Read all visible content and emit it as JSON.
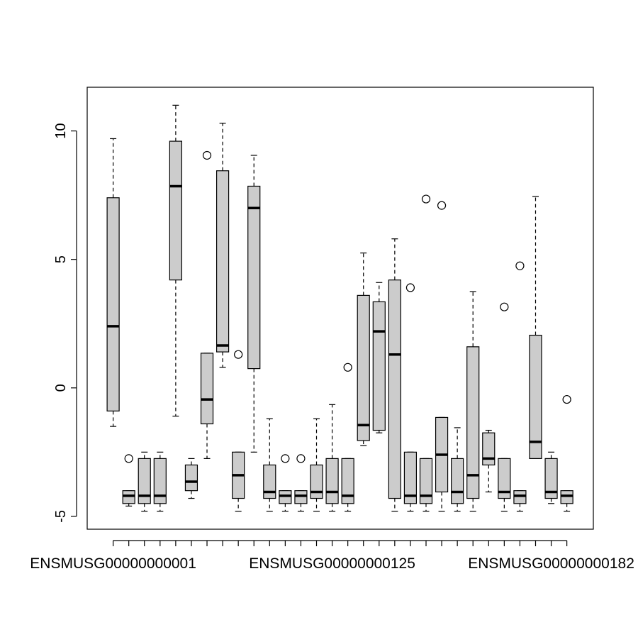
{
  "chart_data": {
    "type": "boxplot",
    "title": "",
    "xlabel": "",
    "ylabel": "",
    "ylim": [
      -5.5,
      11.7
    ],
    "y_ticks": [
      -5,
      0,
      5,
      10
    ],
    "y_tick_labels": [
      "-5",
      "0",
      "5",
      "10"
    ],
    "x_tick_labels": [
      {
        "category": 1,
        "text": "ENSMUSG00000000001"
      },
      {
        "category": 15,
        "text": "ENSMUSG00000000125"
      },
      {
        "category": 29,
        "text": "ENSMUSG00000000182"
      }
    ],
    "grid": false,
    "box_fill": "#cccccc",
    "line_color": "#000000",
    "boxes": [
      {
        "category": 1,
        "whisker_low": -1.5,
        "q1": -0.9,
        "median": 2.4,
        "q3": 7.4,
        "whisker_high": 9.7,
        "outliers": []
      },
      {
        "category": 2,
        "whisker_low": -4.6,
        "q1": -4.5,
        "median": -4.2,
        "q3": -4.0,
        "whisker_high": -4.0,
        "outliers": [
          -2.75
        ]
      },
      {
        "category": 3,
        "whisker_low": -4.8,
        "q1": -4.5,
        "median": -4.2,
        "q3": -2.75,
        "whisker_high": -2.5,
        "outliers": []
      },
      {
        "category": 4,
        "whisker_low": -4.8,
        "q1": -4.5,
        "median": -4.2,
        "q3": -2.75,
        "whisker_high": -2.5,
        "outliers": []
      },
      {
        "category": 5,
        "whisker_low": -1.1,
        "q1": 4.2,
        "median": 7.85,
        "q3": 9.6,
        "whisker_high": 11.0,
        "outliers": []
      },
      {
        "category": 6,
        "whisker_low": -4.3,
        "q1": -4.0,
        "median": -3.65,
        "q3": -3.0,
        "whisker_high": -2.75,
        "outliers": []
      },
      {
        "category": 7,
        "whisker_low": -2.75,
        "q1": -1.4,
        "median": -0.45,
        "q3": 1.35,
        "whisker_high": 1.35,
        "outliers": [
          9.05
        ]
      },
      {
        "category": 8,
        "whisker_low": 0.8,
        "q1": 1.4,
        "median": 1.65,
        "q3": 8.45,
        "whisker_high": 10.3,
        "outliers": []
      },
      {
        "category": 9,
        "whisker_low": -4.8,
        "q1": -4.3,
        "median": -3.4,
        "q3": -2.5,
        "whisker_high": -2.5,
        "outliers": [
          1.3
        ]
      },
      {
        "category": 10,
        "whisker_low": -2.5,
        "q1": 0.75,
        "median": 7.0,
        "q3": 7.85,
        "whisker_high": 9.05,
        "outliers": []
      },
      {
        "category": 11,
        "whisker_low": -4.8,
        "q1": -4.3,
        "median": -4.05,
        "q3": -3.0,
        "whisker_high": -1.2,
        "outliers": []
      },
      {
        "category": 12,
        "whisker_low": -4.8,
        "q1": -4.5,
        "median": -4.2,
        "q3": -4.0,
        "whisker_high": -4.0,
        "outliers": [
          -2.75
        ]
      },
      {
        "category": 13,
        "whisker_low": -4.8,
        "q1": -4.5,
        "median": -4.2,
        "q3": -4.0,
        "whisker_high": -4.0,
        "outliers": [
          -2.75
        ]
      },
      {
        "category": 14,
        "whisker_low": -4.8,
        "q1": -4.3,
        "median": -4.05,
        "q3": -3.0,
        "whisker_high": -1.2,
        "outliers": []
      },
      {
        "category": 15,
        "whisker_low": -4.8,
        "q1": -4.5,
        "median": -4.05,
        "q3": -2.75,
        "whisker_high": -0.65,
        "outliers": []
      },
      {
        "category": 16,
        "whisker_low": -4.8,
        "q1": -4.5,
        "median": -4.2,
        "q3": -2.75,
        "whisker_high": -2.75,
        "outliers": [
          0.8
        ]
      },
      {
        "category": 17,
        "whisker_low": -2.25,
        "q1": -2.05,
        "median": -1.45,
        "q3": 3.6,
        "whisker_high": 5.25,
        "outliers": []
      },
      {
        "category": 18,
        "whisker_low": -1.75,
        "q1": -1.65,
        "median": 2.2,
        "q3": 3.35,
        "whisker_high": 4.1,
        "outliers": []
      },
      {
        "category": 19,
        "whisker_low": -4.8,
        "q1": -4.3,
        "median": 1.3,
        "q3": 4.2,
        "whisker_high": 5.8,
        "outliers": []
      },
      {
        "category": 20,
        "whisker_low": -4.8,
        "q1": -4.5,
        "median": -4.2,
        "q3": -2.5,
        "whisker_high": -2.5,
        "outliers": [
          3.9
        ]
      },
      {
        "category": 21,
        "whisker_low": -4.8,
        "q1": -4.5,
        "median": -4.2,
        "q3": -2.75,
        "whisker_high": -2.75,
        "outliers": [
          7.35
        ]
      },
      {
        "category": 22,
        "whisker_low": -4.8,
        "q1": -4.05,
        "median": -2.6,
        "q3": -1.15,
        "whisker_high": -1.15,
        "outliers": [
          7.1
        ]
      },
      {
        "category": 23,
        "whisker_low": -4.8,
        "q1": -4.5,
        "median": -4.05,
        "q3": -2.75,
        "whisker_high": -1.55,
        "outliers": []
      },
      {
        "category": 24,
        "whisker_low": -4.8,
        "q1": -4.3,
        "median": -3.4,
        "q3": 1.6,
        "whisker_high": 3.75,
        "outliers": []
      },
      {
        "category": 25,
        "whisker_low": -4.05,
        "q1": -3.0,
        "median": -2.75,
        "q3": -1.75,
        "whisker_high": -1.65,
        "outliers": []
      },
      {
        "category": 26,
        "whisker_low": -4.8,
        "q1": -4.3,
        "median": -4.05,
        "q3": -2.75,
        "whisker_high": -2.75,
        "outliers": [
          3.15
        ]
      },
      {
        "category": 27,
        "whisker_low": -4.8,
        "q1": -4.5,
        "median": -4.2,
        "q3": -4.0,
        "whisker_high": -4.0,
        "outliers": [
          4.75
        ]
      },
      {
        "category": 28,
        "whisker_low": -2.75,
        "q1": -2.75,
        "median": -2.1,
        "q3": 2.05,
        "whisker_high": 7.45,
        "outliers": []
      },
      {
        "category": 29,
        "whisker_low": -4.5,
        "q1": -4.3,
        "median": -4.05,
        "q3": -2.75,
        "whisker_high": -2.5,
        "outliers": []
      },
      {
        "category": 30,
        "whisker_low": -4.8,
        "q1": -4.5,
        "median": -4.2,
        "q3": -4.0,
        "whisker_high": -4.0,
        "outliers": [
          -0.45
        ]
      }
    ]
  }
}
